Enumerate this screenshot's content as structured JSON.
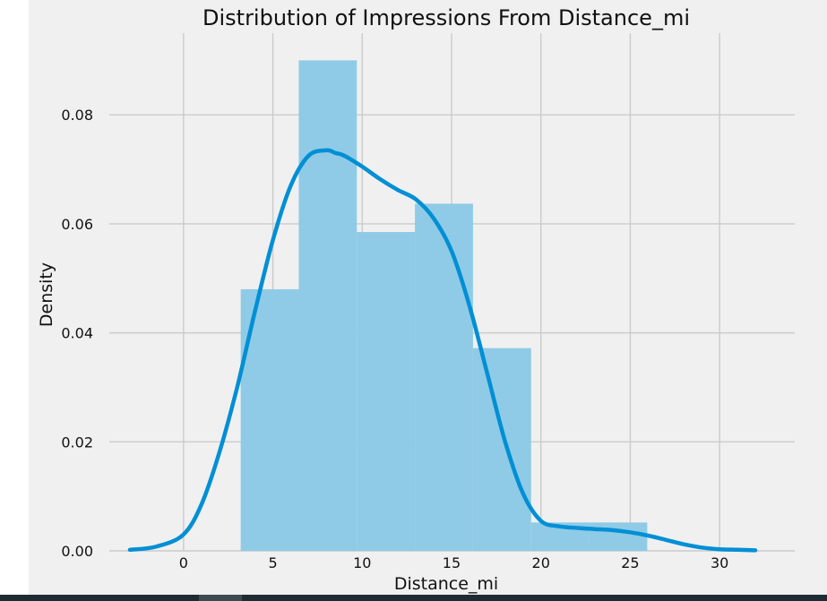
{
  "chart_data": {
    "type": "histogram",
    "title": "Distribution of Impressions From Distance_mi",
    "xlabel": "Distance_mi",
    "ylabel": "Density",
    "xlim": [
      -3,
      32.5
    ],
    "ylim": [
      0,
      0.0945
    ],
    "xticks": [
      0,
      5,
      10,
      15,
      20,
      25,
      30
    ],
    "yticks": [
      0.0,
      0.02,
      0.04,
      0.06,
      0.08
    ],
    "ytick_format": 2,
    "grid": true,
    "bins": [
      {
        "x0": 3.2,
        "x1": 6.45,
        "density": 0.048
      },
      {
        "x0": 6.45,
        "x1": 9.7,
        "density": 0.09
      },
      {
        "x0": 9.7,
        "x1": 12.95,
        "density": 0.0585
      },
      {
        "x0": 12.95,
        "x1": 16.2,
        "density": 0.0637
      },
      {
        "x0": 16.2,
        "x1": 19.45,
        "density": 0.0372
      },
      {
        "x0": 19.45,
        "x1": 22.7,
        "density": 0.0052
      },
      {
        "x0": 22.7,
        "x1": 25.95,
        "density": 0.0052
      }
    ],
    "kde": {
      "x": [
        -3,
        -1.5,
        0,
        1,
        2,
        3,
        4,
        5,
        6,
        7,
        8,
        8.5,
        9,
        10,
        11,
        12,
        13,
        14,
        15,
        16,
        17,
        18,
        19,
        20,
        21,
        22,
        23,
        24,
        25,
        26,
        27,
        28,
        29,
        30,
        31,
        32
      ],
      "y": [
        0.0002,
        0.0008,
        0.003,
        0.0085,
        0.018,
        0.03,
        0.044,
        0.057,
        0.067,
        0.0725,
        0.0735,
        0.073,
        0.0725,
        0.0705,
        0.0682,
        0.0662,
        0.0645,
        0.061,
        0.055,
        0.045,
        0.0325,
        0.02,
        0.0105,
        0.0055,
        0.0045,
        0.0042,
        0.004,
        0.0038,
        0.0034,
        0.0028,
        0.002,
        0.0012,
        0.0006,
        0.0003,
        0.0002,
        0.0001
      ]
    },
    "colors": {
      "bar_fill": "#8fcbe6",
      "bar_fill_opacity": 1,
      "line": "#008fd5",
      "plot_background": "#f0f0f0",
      "grid": "#cbcbcb",
      "text": "#111111"
    }
  }
}
